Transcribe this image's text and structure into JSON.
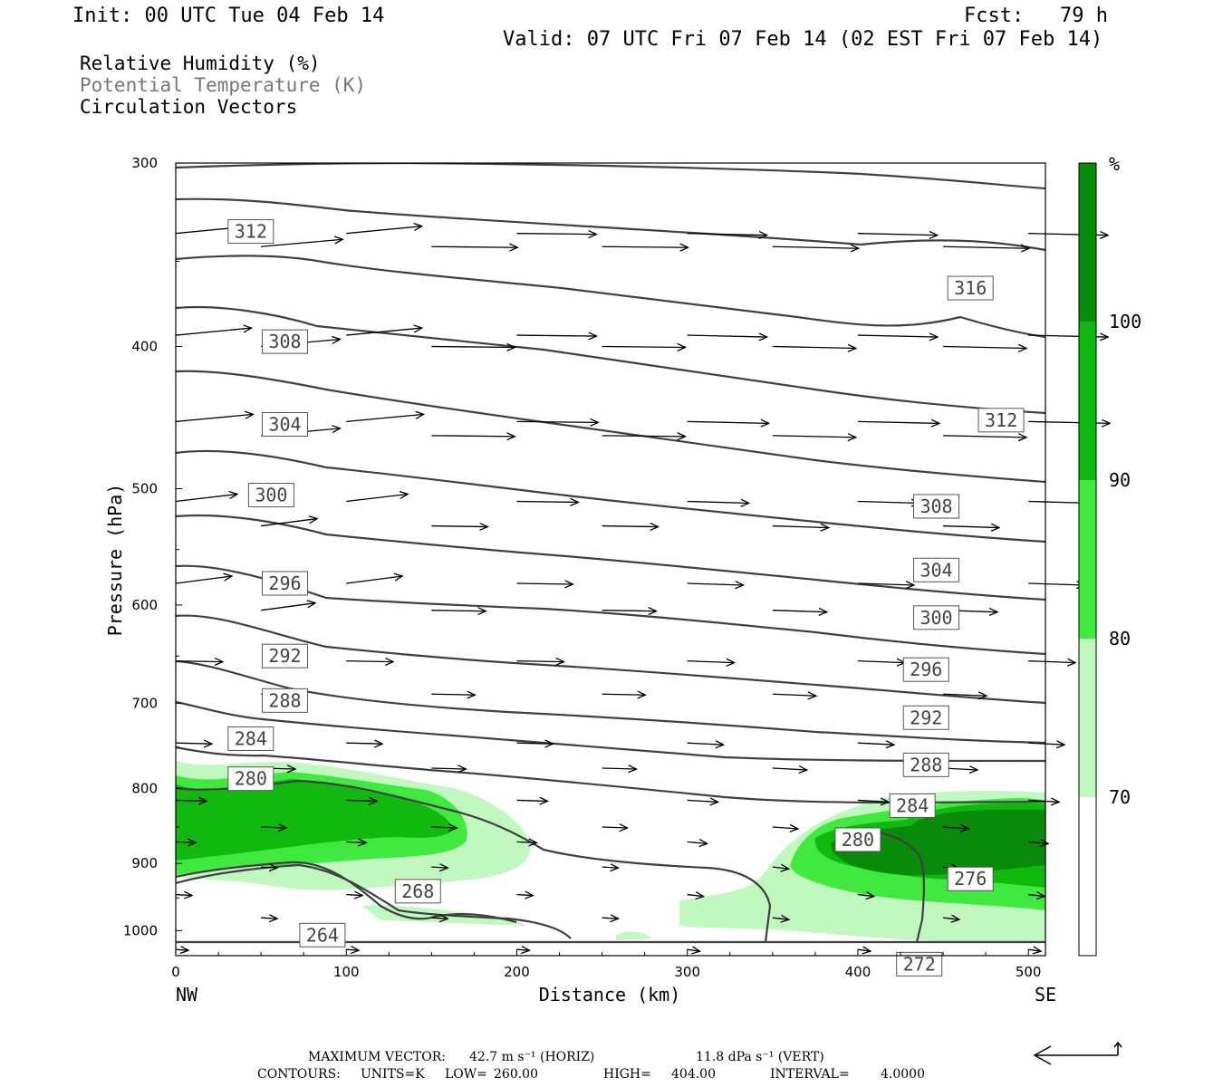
{
  "header": {
    "init": "Init: 00 UTC Tue 04 Feb 14",
    "fcst": "Fcst:   79 h",
    "valid": "Valid: 07 UTC Fri 07 Feb 14 (02 EST Fri 07 Feb 14)"
  },
  "legend": {
    "rh": "Relative Humidity (%)",
    "theta": "Potential Temperature (K)",
    "vectors": "Circulation Vectors"
  },
  "colors": {
    "rh70": "#c0f8c0",
    "rh80": "#40e840",
    "rh90": "#10b810",
    "rh100": "#0a8a0a",
    "contour": "#404040",
    "theta_label": "#555555"
  },
  "chart_data": {
    "type": "cross-section",
    "xlabel": "Distance (km)",
    "ylabel": "Pressure (hPa)",
    "xlim": [
      0,
      510
    ],
    "ylim": [
      1040,
      300
    ],
    "y_scale": "log",
    "x_ticks": [
      "0",
      "100",
      "200",
      "300",
      "400",
      "500"
    ],
    "y_ticks": [
      "300",
      "400",
      "500",
      "600",
      "700",
      "800",
      "900",
      "1000"
    ],
    "x_end_labels": {
      "left": "NW",
      "right": "SE"
    },
    "colorbar": {
      "unit": "%",
      "levels": [
        "100",
        "90",
        "80",
        "70"
      ]
    },
    "theta_contour_labels": [
      {
        "k": "312",
        "x": 44,
        "p": 334
      },
      {
        "k": "316",
        "x": 466,
        "p": 365
      },
      {
        "k": "308",
        "x": 64,
        "p": 397
      },
      {
        "k": "312",
        "x": 484,
        "p": 449
      },
      {
        "k": "304",
        "x": 64,
        "p": 452
      },
      {
        "k": "300",
        "x": 56,
        "p": 505
      },
      {
        "k": "308",
        "x": 446,
        "p": 514
      },
      {
        "k": "304",
        "x": 446,
        "p": 568
      },
      {
        "k": "296",
        "x": 64,
        "p": 580
      },
      {
        "k": "300",
        "x": 446,
        "p": 612
      },
      {
        "k": "292",
        "x": 64,
        "p": 650
      },
      {
        "k": "296",
        "x": 440,
        "p": 664
      },
      {
        "k": "288",
        "x": 64,
        "p": 697
      },
      {
        "k": "292",
        "x": 440,
        "p": 716
      },
      {
        "k": "284",
        "x": 44,
        "p": 740
      },
      {
        "k": "288",
        "x": 440,
        "p": 771
      },
      {
        "k": "280",
        "x": 44,
        "p": 788
      },
      {
        "k": "284",
        "x": 432,
        "p": 822
      },
      {
        "k": "280",
        "x": 400,
        "p": 867
      },
      {
        "k": "276",
        "x": 466,
        "p": 922
      },
      {
        "k": "268",
        "x": 142,
        "p": 940
      },
      {
        "k": "264",
        "x": 86,
        "p": 1007
      },
      {
        "k": "272",
        "x": 436,
        "p": 1054
      }
    ],
    "max_vector": {
      "horiz": "42.7 m s⁻¹ (HORIZ)",
      "vert": "11.8 dPa s⁻¹ (VERT)"
    },
    "contour_info": {
      "units": "K",
      "low": "260.00",
      "high": "404.00",
      "interval": "4.0000"
    }
  },
  "footer": {
    "line1_label": "MAXIMUM VECTOR:",
    "line2_label": "CONTOURS:",
    "units_text": "UNITS=K",
    "low_label": "LOW=",
    "high_label": "HIGH=",
    "interval_label": "INTERVAL="
  }
}
